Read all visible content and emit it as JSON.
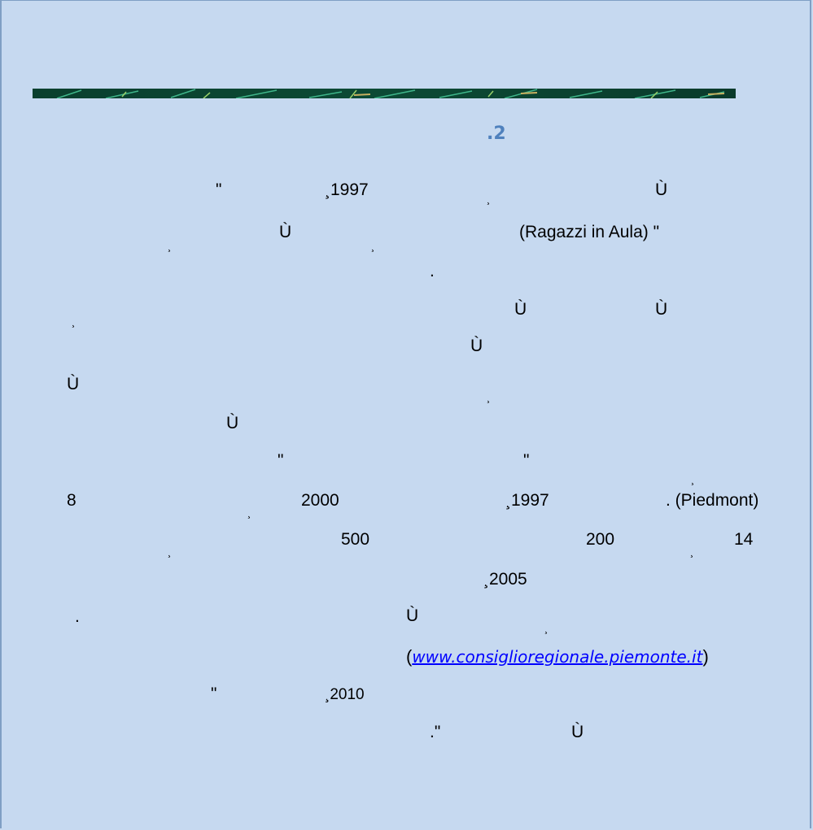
{
  "heading": ".2",
  "lines": [
    {
      "items": [
        "\"",
        "¸1997",
        "¸",
        "Ù"
      ]
    },
    {
      "items": [
        "¸",
        "Ù",
        "¸",
        "(Ragazzi in Aula) \""
      ]
    },
    {
      "items": [
        "."
      ]
    },
    {
      "items": [
        "¸",
        "Ù",
        "Ù"
      ]
    },
    {
      "items": [
        "Ù"
      ]
    },
    {
      "items": [
        "Ù",
        "¸"
      ]
    },
    {
      "items": [
        "Ù"
      ]
    },
    {
      "items": [
        "\"",
        "\""
      ]
    },
    {
      "items": [
        "¸"
      ]
    },
    {
      "items": [
        "8",
        "¸",
        "2000",
        "¸1997",
        ". (Piedmont)"
      ]
    },
    {
      "items": [
        "¸",
        "500",
        "200",
        "¸",
        "14"
      ]
    },
    {
      "items": [
        "¸2005"
      ]
    },
    {
      "items": [
        ".",
        "Ù",
        "¸"
      ]
    },
    {
      "link": {
        "open": "(",
        "url": "www.consiglioregionale.piemonte.it",
        "close": ")"
      }
    },
    {
      "items": [
        "\"",
        "¸2010"
      ]
    },
    {
      "items": [
        ".\"",
        "Ù"
      ]
    }
  ]
}
